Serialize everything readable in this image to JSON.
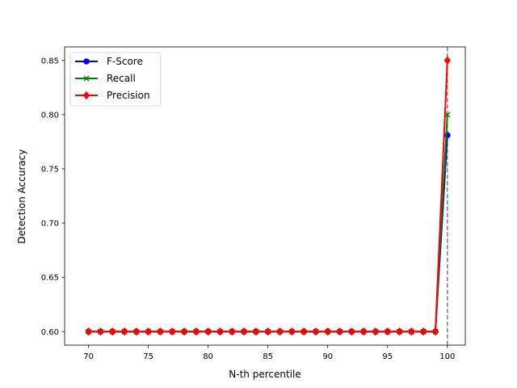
{
  "chart_data": {
    "type": "line",
    "title": "",
    "xlabel": "N-th percentile",
    "ylabel": "Detection Accuracy",
    "xlim": [
      68.0,
      101.5
    ],
    "ylim": [
      0.5875,
      0.8625
    ],
    "x_ticks": [
      70,
      75,
      80,
      85,
      90,
      95,
      100
    ],
    "y_ticks": [
      0.6,
      0.65,
      0.7,
      0.75,
      0.8,
      0.85
    ],
    "x_tick_labels": [
      "70",
      "75",
      "80",
      "85",
      "90",
      "95",
      "100"
    ],
    "y_tick_labels": [
      "0.60",
      "0.65",
      "0.70",
      "0.75",
      "0.80",
      "0.85"
    ],
    "grid": false,
    "legend_position": "upper-left",
    "reference_line": {
      "x": 100,
      "style": "dashed",
      "color": "#808080"
    },
    "x": [
      70,
      71,
      72,
      73,
      74,
      75,
      76,
      77,
      78,
      79,
      80,
      81,
      82,
      83,
      84,
      85,
      86,
      87,
      88,
      89,
      90,
      91,
      92,
      93,
      94,
      95,
      96,
      97,
      98,
      99,
      100
    ],
    "series": [
      {
        "name": "F-Score",
        "color": "#0000ff",
        "marker": "circle",
        "values": [
          0.6,
          0.6,
          0.6,
          0.6,
          0.6,
          0.6,
          0.6,
          0.6,
          0.6,
          0.6,
          0.6,
          0.6,
          0.6,
          0.6,
          0.6,
          0.6,
          0.6,
          0.6,
          0.6,
          0.6,
          0.6,
          0.6,
          0.6,
          0.6,
          0.6,
          0.6,
          0.6,
          0.6,
          0.6,
          0.6,
          0.781
        ]
      },
      {
        "name": "Recall",
        "color": "#008000",
        "marker": "x",
        "values": [
          0.6,
          0.6,
          0.6,
          0.6,
          0.6,
          0.6,
          0.6,
          0.6,
          0.6,
          0.6,
          0.6,
          0.6,
          0.6,
          0.6,
          0.6,
          0.6,
          0.6,
          0.6,
          0.6,
          0.6,
          0.6,
          0.6,
          0.6,
          0.6,
          0.6,
          0.6,
          0.6,
          0.6,
          0.6,
          0.6,
          0.8
        ]
      },
      {
        "name": "Precision",
        "color": "#ff0000",
        "marker": "diamond",
        "values": [
          0.6,
          0.6,
          0.6,
          0.6,
          0.6,
          0.6,
          0.6,
          0.6,
          0.6,
          0.6,
          0.6,
          0.6,
          0.6,
          0.6,
          0.6,
          0.6,
          0.6,
          0.6,
          0.6,
          0.6,
          0.6,
          0.6,
          0.6,
          0.6,
          0.6,
          0.6,
          0.6,
          0.6,
          0.6,
          0.6,
          0.85
        ]
      }
    ]
  }
}
